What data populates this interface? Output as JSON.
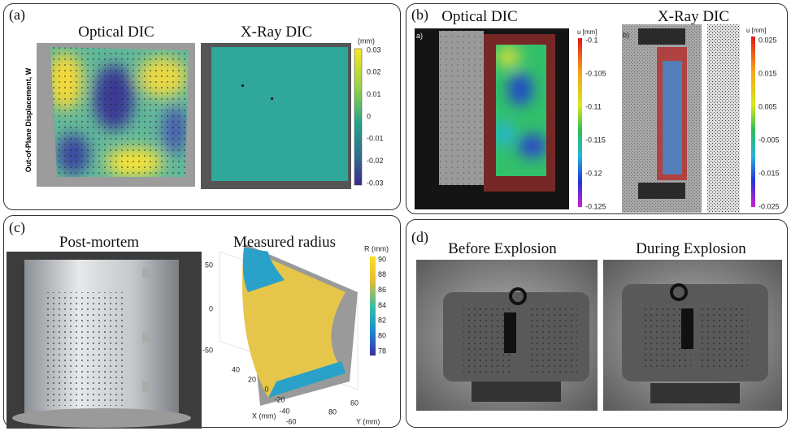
{
  "panels": [
    {
      "label": "(a)",
      "titles": [
        "Optical DIC",
        "X-Ray DIC"
      ],
      "y_label": "Out-of-Plane Displacement, W",
      "colorbar": {
        "title": "(mm)",
        "ticks": [
          "0.03",
          "0.02",
          "0.01",
          "0",
          "-0.01",
          "-0.02",
          "-0.03"
        ]
      }
    },
    {
      "label": "(b)",
      "titles": [
        "Optical DIC",
        "X-Ray DIC"
      ],
      "insets": [
        "a)",
        "b)"
      ],
      "colorbars": [
        {
          "title": "u [mm]",
          "ticks": [
            "-0.1",
            "-0.105",
            "-0.11",
            "-0.115",
            "-0.12",
            "-0.125"
          ]
        },
        {
          "title": "u [mm]",
          "ticks": [
            "0.025",
            "0.015",
            "0.005",
            "-0.005",
            "-0.015",
            "-0.025"
          ]
        }
      ]
    },
    {
      "label": "(c)",
      "titles": [
        "Post-mortem",
        "Measured radius"
      ],
      "colorbar": {
        "title": "R (mm)",
        "ticks": [
          "90",
          "88",
          "86",
          "84",
          "82",
          "80",
          "78"
        ]
      },
      "z_ticks": [
        "50",
        "0",
        "-50"
      ],
      "x_ticks": [
        "40",
        "20",
        "0",
        "-20",
        "-40",
        "-60"
      ],
      "y_ticks": [
        "80",
        "60"
      ],
      "x_label": "X (mm)",
      "y_label": "Y (mm)"
    },
    {
      "label": "(d)",
      "titles": [
        "Before Explosion",
        "During Explosion"
      ]
    }
  ]
}
